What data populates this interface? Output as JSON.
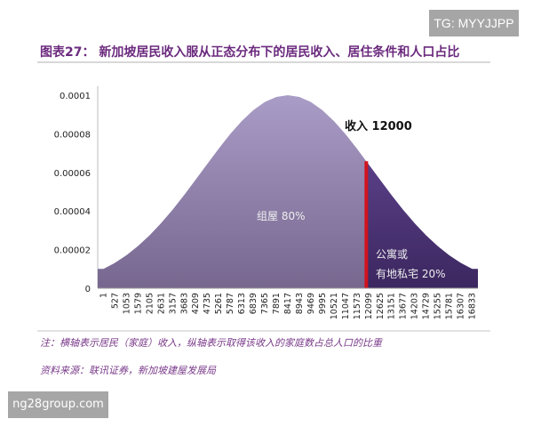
{
  "watermarks": {
    "top": "TG: MYYJJPP",
    "bottom": "ng28group.com"
  },
  "title": "图表27： 新加坡居民收入服从正态分布下的居民收入、居住条件和人口占比",
  "note": "注：横轴表示居民（家庭）收入，纵轴表示取得该收入的家庭数占总人口的比重",
  "source": "资料来源：联讯证券，新加坡建屋发展局",
  "chart_data": {
    "type": "area",
    "title": "",
    "xlabel": "",
    "ylabel": "",
    "categories": [
      "1",
      "527",
      "1053",
      "1579",
      "2105",
      "2631",
      "3157",
      "3683",
      "4209",
      "4735",
      "5261",
      "5787",
      "6313",
      "6839",
      "7365",
      "7891",
      "8417",
      "8943",
      "9469",
      "9995",
      "10521",
      "11047",
      "11573",
      "12099",
      "12625",
      "13151",
      "13677",
      "14203",
      "14729",
      "15255",
      "15781",
      "16307",
      "16833"
    ],
    "series": [
      {
        "values": [
          1e-05,
          1.32e-05,
          1.71e-05,
          2.19e-05,
          2.74e-05,
          3.37e-05,
          4.07e-05,
          4.83e-05,
          5.62e-05,
          6.43e-05,
          7.23e-05,
          7.99e-05,
          8.66e-05,
          9.22e-05,
          9.65e-05,
          9.91e-05,
          0.0001,
          9.91e-05,
          9.65e-05,
          9.22e-05,
          8.66e-05,
          7.99e-05,
          7.23e-05,
          6.43e-05,
          5.62e-05,
          4.83e-05,
          4.07e-05,
          3.37e-05,
          2.74e-05,
          2.19e-05,
          1.71e-05,
          1.32e-05,
          1e-05
        ]
      }
    ],
    "yticks": [
      "0",
      "0.00002",
      "0.00004",
      "0.00006",
      "0.00008",
      "0.0001"
    ],
    "ylim": [
      0,
      0.0001
    ],
    "grid": false,
    "threshold": {
      "value": 12000,
      "label": "收入 12000",
      "color": "#d0141e"
    },
    "regions": [
      {
        "label": "组屋 80%",
        "color": "#9a8cb8"
      },
      {
        "label_line1": "公寓或",
        "label_line2": "有地私宅 20%",
        "color": "#4a3270"
      }
    ]
  }
}
